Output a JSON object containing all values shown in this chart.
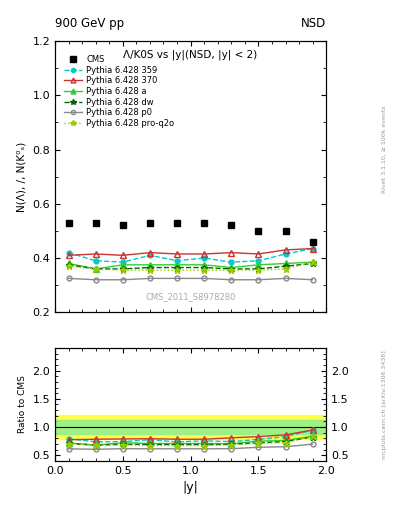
{
  "title_top": "900 GeV pp",
  "title_right": "NSD",
  "plot_title": "Λ/K0S vs |y|(NSD, |y| < 2)",
  "ylabel_main": "N(Λ), /, N(K⁰ₛ)",
  "ylabel_ratio": "Ratio to CMS",
  "xlabel": "|y|",
  "watermark": "CMS_2011_S8978280",
  "rivet_text": "Rivet 3.1.10, ≥ 100k events",
  "mcplots_text": "mcplots.cern.ch [arXiv:1306.3436]",
  "xlim": [
    0,
    2.0
  ],
  "ylim_main": [
    0.2,
    1.2
  ],
  "ylim_ratio": [
    0.4,
    2.4
  ],
  "x_data": [
    0.1,
    0.3,
    0.5,
    0.7,
    0.9,
    1.1,
    1.3,
    1.5,
    1.7,
    1.9
  ],
  "cms_y": [
    0.53,
    0.53,
    0.52,
    0.53,
    0.53,
    0.53,
    0.52,
    0.5,
    0.5,
    0.46
  ],
  "py359_y": [
    0.42,
    0.39,
    0.385,
    0.41,
    0.39,
    0.4,
    0.385,
    0.39,
    0.415,
    0.435
  ],
  "py370_y": [
    0.41,
    0.415,
    0.41,
    0.42,
    0.415,
    0.415,
    0.42,
    0.415,
    0.43,
    0.435
  ],
  "pya_y": [
    0.38,
    0.36,
    0.375,
    0.375,
    0.375,
    0.375,
    0.365,
    0.375,
    0.38,
    0.385
  ],
  "pydw_y": [
    0.375,
    0.36,
    0.36,
    0.365,
    0.365,
    0.365,
    0.36,
    0.36,
    0.37,
    0.38
  ],
  "pyp0_y": [
    0.325,
    0.32,
    0.32,
    0.325,
    0.325,
    0.325,
    0.32,
    0.32,
    0.325,
    0.32
  ],
  "pyproq2o_y": [
    0.37,
    0.36,
    0.355,
    0.355,
    0.355,
    0.355,
    0.355,
    0.355,
    0.36,
    0.385
  ],
  "py359_ratio": [
    0.792,
    0.736,
    0.74,
    0.774,
    0.736,
    0.755,
    0.74,
    0.78,
    0.83,
    0.946
  ],
  "py370_ratio": [
    0.774,
    0.783,
    0.788,
    0.792,
    0.783,
    0.783,
    0.808,
    0.83,
    0.86,
    0.946
  ],
  "pya_ratio": [
    0.717,
    0.679,
    0.721,
    0.708,
    0.708,
    0.708,
    0.702,
    0.75,
    0.76,
    0.837
  ],
  "pydw_ratio": [
    0.708,
    0.679,
    0.692,
    0.689,
    0.689,
    0.689,
    0.692,
    0.72,
    0.74,
    0.826
  ],
  "pyp0_ratio": [
    0.613,
    0.604,
    0.615,
    0.613,
    0.613,
    0.613,
    0.615,
    0.64,
    0.65,
    0.696
  ],
  "pyproq2o_ratio": [
    0.698,
    0.679,
    0.683,
    0.67,
    0.67,
    0.67,
    0.683,
    0.71,
    0.72,
    0.837
  ],
  "band_yellow_lo": 0.78,
  "band_yellow_hi": 1.22,
  "band_green_lo": 0.88,
  "band_green_hi": 1.12,
  "color_359": "#00CCCC",
  "color_370": "#CC3333",
  "color_a": "#33CC33",
  "color_dw": "#006600",
  "color_p0": "#888888",
  "color_proq2o": "#99CC00"
}
